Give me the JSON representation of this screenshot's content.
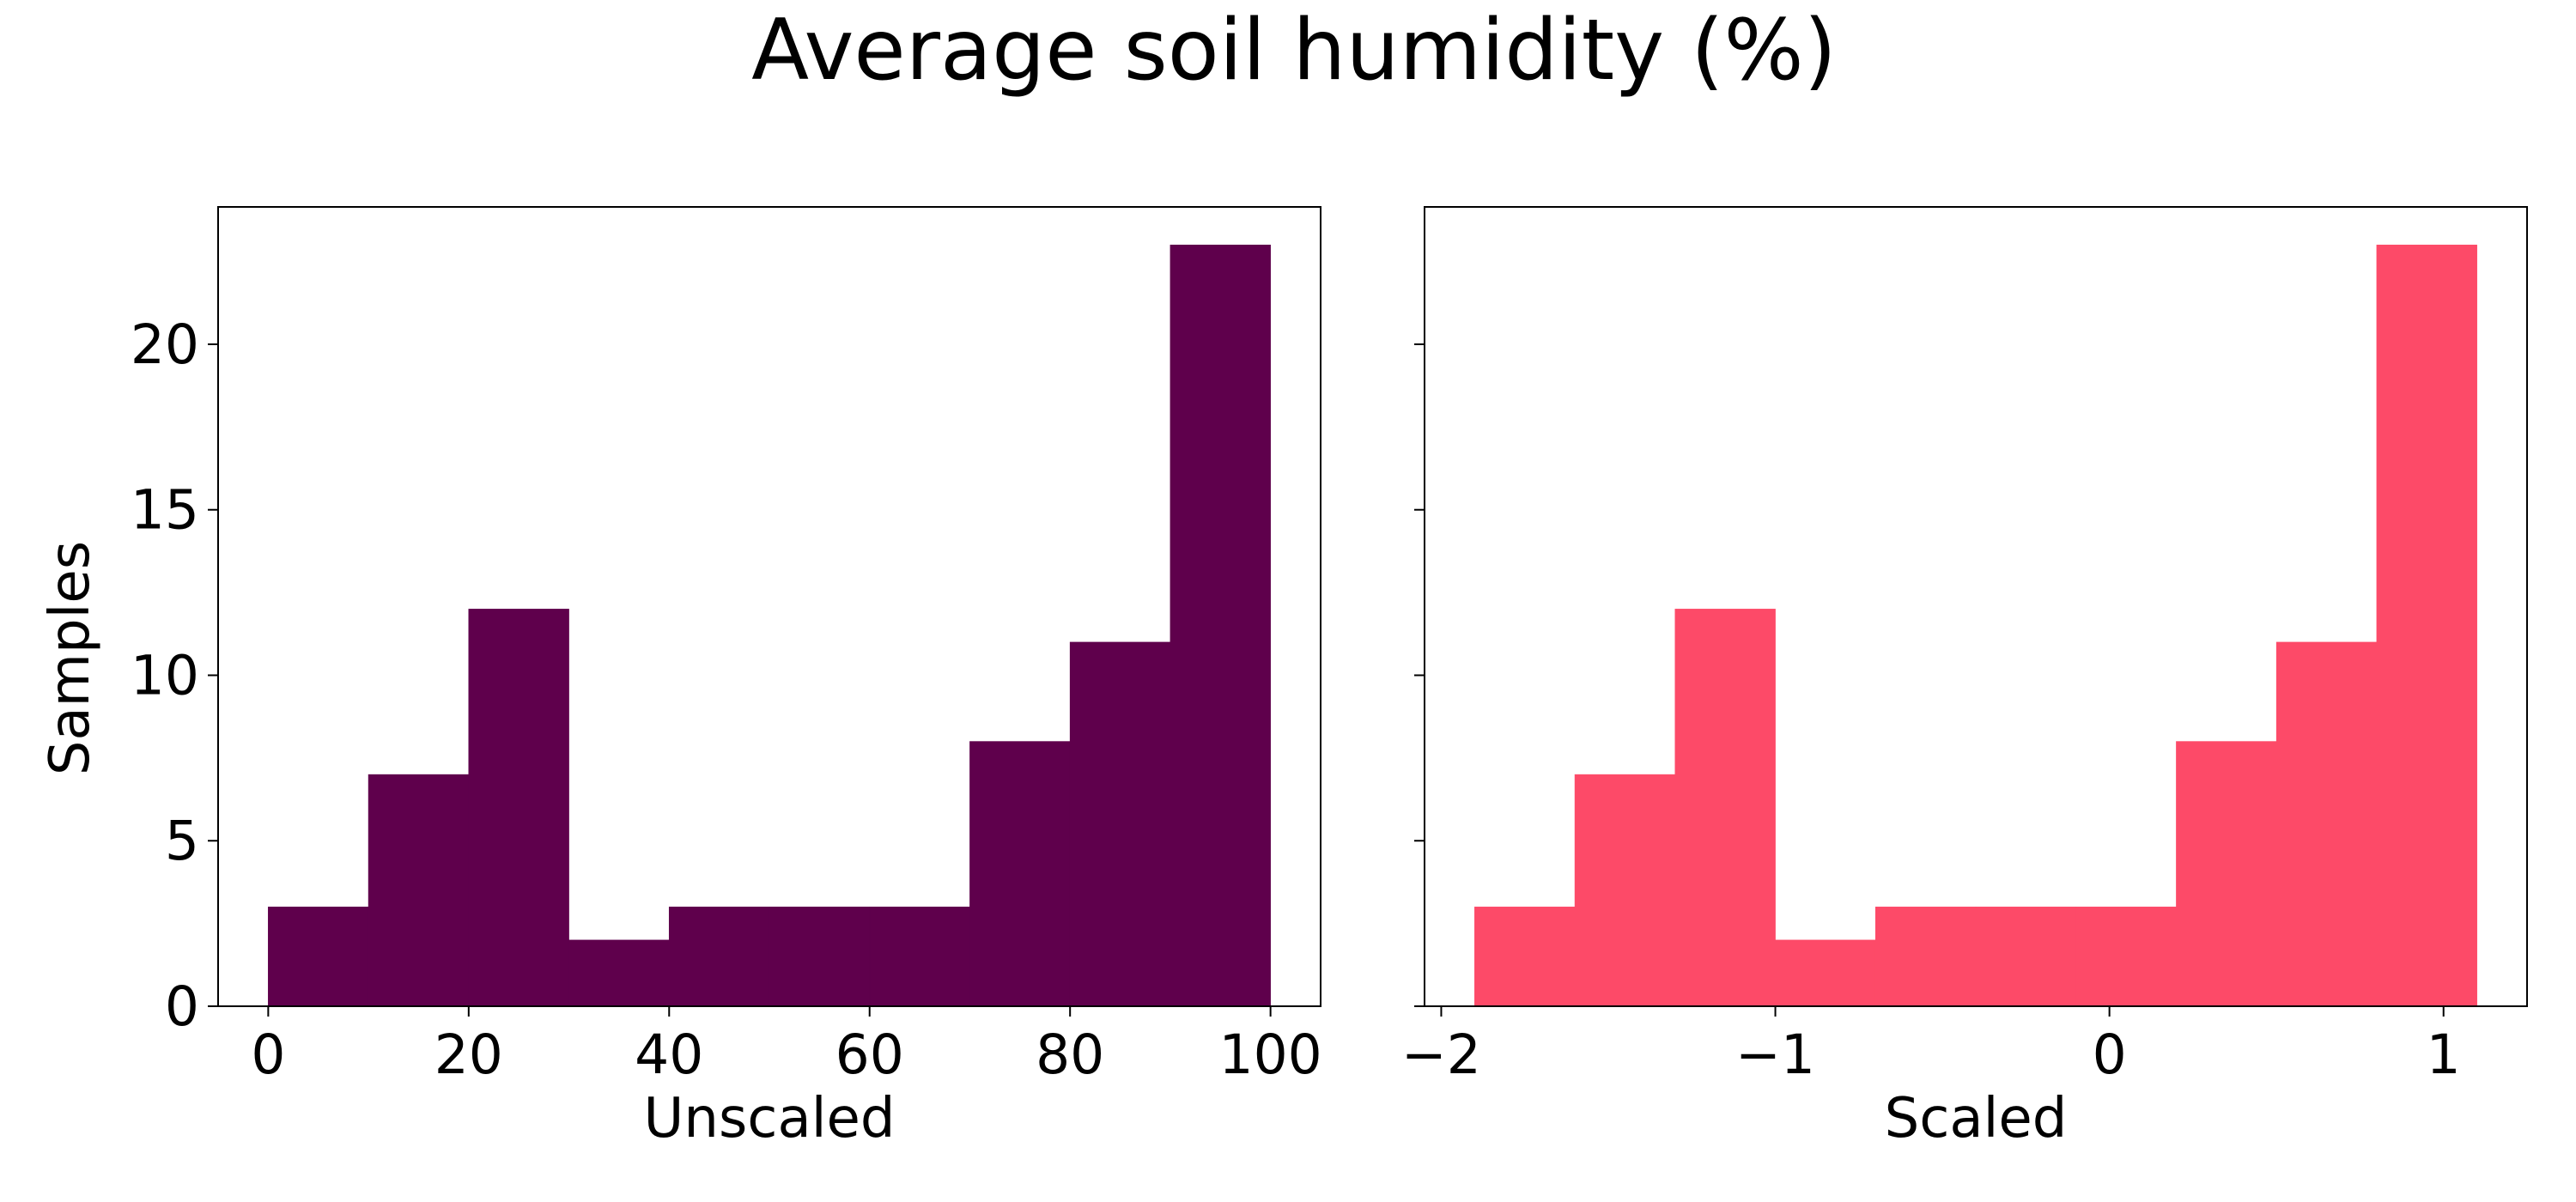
{
  "figure": {
    "title": "Average soil humidity (%)"
  },
  "chart_data": [
    {
      "type": "bar",
      "title": "",
      "xlabel": "Unscaled",
      "ylabel": "Samples",
      "color": "#5f004c",
      "bin_edges": [
        0,
        10,
        20,
        30,
        40,
        50,
        60,
        70,
        80,
        90,
        100
      ],
      "values": [
        3,
        7,
        12,
        2,
        3,
        3,
        3,
        8,
        11,
        23
      ],
      "xlim": [
        -5,
        105
      ],
      "ylim": [
        0,
        24.15
      ],
      "xticks": [
        {
          "value": 0,
          "label": "0"
        },
        {
          "value": 20,
          "label": "20"
        },
        {
          "value": 40,
          "label": "40"
        },
        {
          "value": 60,
          "label": "60"
        },
        {
          "value": 80,
          "label": "80"
        },
        {
          "value": 100,
          "label": "100"
        }
      ],
      "yticks": [
        {
          "value": 0,
          "label": "0"
        },
        {
          "value": 5,
          "label": "5"
        },
        {
          "value": 10,
          "label": "10"
        },
        {
          "value": 15,
          "label": "15"
        },
        {
          "value": 20,
          "label": "20"
        }
      ],
      "show_ytick_labels": true,
      "grid": false
    },
    {
      "type": "bar",
      "title": "",
      "xlabel": "Scaled",
      "ylabel": "",
      "color": "#fd4a68",
      "bin_edges": [
        -1.9,
        -1.6,
        -1.3,
        -1.0,
        -0.7,
        -0.4,
        -0.1,
        0.2,
        0.5,
        0.8,
        1.1
      ],
      "values": [
        3,
        7,
        12,
        2,
        3,
        3,
        3,
        8,
        11,
        23
      ],
      "xlim": [
        -2.05,
        1.25
      ],
      "ylim": [
        0,
        24.15
      ],
      "xticks": [
        {
          "value": -2,
          "label": "−2"
        },
        {
          "value": -1,
          "label": "−1"
        },
        {
          "value": 0,
          "label": "0"
        },
        {
          "value": 1,
          "label": "1"
        }
      ],
      "yticks": [
        {
          "value": 0,
          "label": "0"
        },
        {
          "value": 5,
          "label": "5"
        },
        {
          "value": 10,
          "label": "10"
        },
        {
          "value": 15,
          "label": "15"
        },
        {
          "value": 20,
          "label": "20"
        }
      ],
      "show_ytick_labels": false,
      "grid": false
    }
  ]
}
